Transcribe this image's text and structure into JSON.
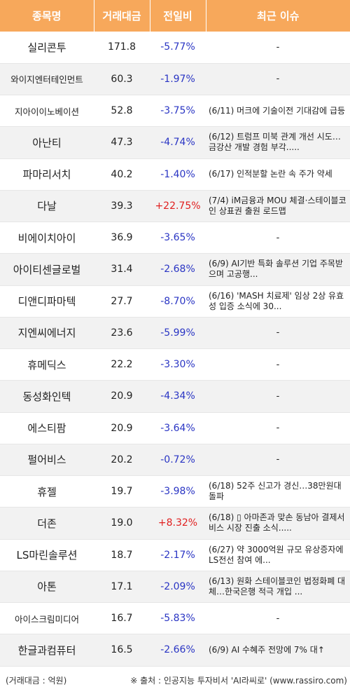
{
  "headers": [
    "종목명",
    "거래대금",
    "전일비",
    "최근 이슈"
  ],
  "rows": [
    {
      "name": "실리콘투",
      "amount": "171.8",
      "change": "-5.77%",
      "dir": "neg",
      "issue": "-"
    },
    {
      "name": "와이지엔터테인먼트",
      "amount": "60.3",
      "change": "-1.97%",
      "dir": "neg",
      "issue": "-"
    },
    {
      "name": "지아이이노베이션",
      "amount": "52.8",
      "change": "-3.75%",
      "dir": "neg",
      "issue": "(6/11) 머크에 기술이전 기대감에 급등"
    },
    {
      "name": "아난티",
      "amount": "47.3",
      "change": "-4.74%",
      "dir": "neg",
      "issue": "(6/12) 트럼프 미북 관계 개선 시도…금강산 개발 경험 부각....."
    },
    {
      "name": "파마리서치",
      "amount": "40.2",
      "change": "-1.40%",
      "dir": "neg",
      "issue": "(6/17) 인적분할 논란 속 주가 약세"
    },
    {
      "name": "다날",
      "amount": "39.3",
      "change": "+22.75%",
      "dir": "pos",
      "issue": "(7/4) iM금융과 MOU 체결·스테이블코인 상표권 출원 로드맵"
    },
    {
      "name": "비에이치아이",
      "amount": "36.9",
      "change": "-3.65%",
      "dir": "neg",
      "issue": "-"
    },
    {
      "name": "아이티센글로벌",
      "amount": "31.4",
      "change": "-2.68%",
      "dir": "neg",
      "issue": "(6/9) AI기반 특화 솔루션 기업 주목받으며 고공행..."
    },
    {
      "name": "디앤디파마텍",
      "amount": "27.7",
      "change": "-8.70%",
      "dir": "neg",
      "issue": "(6/16) 'MASH 치료제' 임상 2상 유효성 입증 소식에 30..."
    },
    {
      "name": "지엔씨에너지",
      "amount": "23.6",
      "change": "-5.99%",
      "dir": "neg",
      "issue": "-"
    },
    {
      "name": "휴메딕스",
      "amount": "22.2",
      "change": "-3.30%",
      "dir": "neg",
      "issue": "-"
    },
    {
      "name": "동성화인텍",
      "amount": "20.9",
      "change": "-4.34%",
      "dir": "neg",
      "issue": "-"
    },
    {
      "name": "에스티팜",
      "amount": "20.9",
      "change": "-3.64%",
      "dir": "neg",
      "issue": "-"
    },
    {
      "name": "펄어비스",
      "amount": "20.2",
      "change": "-0.72%",
      "dir": "neg",
      "issue": "-"
    },
    {
      "name": "휴젤",
      "amount": "19.7",
      "change": "-3.98%",
      "dir": "neg",
      "issue": "(6/18) 52주 신고가 경신…38만원대 돌파"
    },
    {
      "name": "더존",
      "amount": "19.0",
      "change": "+8.32%",
      "dir": "pos",
      "issue": "(6/18) ▯ 아마존과 맞손 동남아 결제서비스 시장 진출 소식....."
    },
    {
      "name": "LS마린솔루션",
      "amount": "18.7",
      "change": "-2.17%",
      "dir": "neg",
      "issue": "(6/27) 약 3000억원 규모 유상증자에 LS전선 참여 에..."
    },
    {
      "name": "아톤",
      "amount": "17.1",
      "change": "-2.09%",
      "dir": "neg",
      "issue": "(6/13) 원화 스테이블코인 법정화폐 대체…한국은행 적극 개입 ..."
    },
    {
      "name": "아이스크림미디어",
      "amount": "16.7",
      "change": "-5.83%",
      "dir": "neg",
      "issue": "-"
    },
    {
      "name": "한글과컴퓨터",
      "amount": "16.5",
      "change": "-2.66%",
      "dir": "neg",
      "issue": "(6/9) AI 수혜주 전망에 7% 대↑"
    }
  ],
  "footer": {
    "unit": "(거래대금 : 억원)",
    "source": "※ 출처 : 인공지능 투자비서 'AI라씨로' (www.rassiro.com)"
  },
  "colors": {
    "header": "#f7a85b",
    "negative": "#2a35c4",
    "positive": "#e01f1f"
  }
}
